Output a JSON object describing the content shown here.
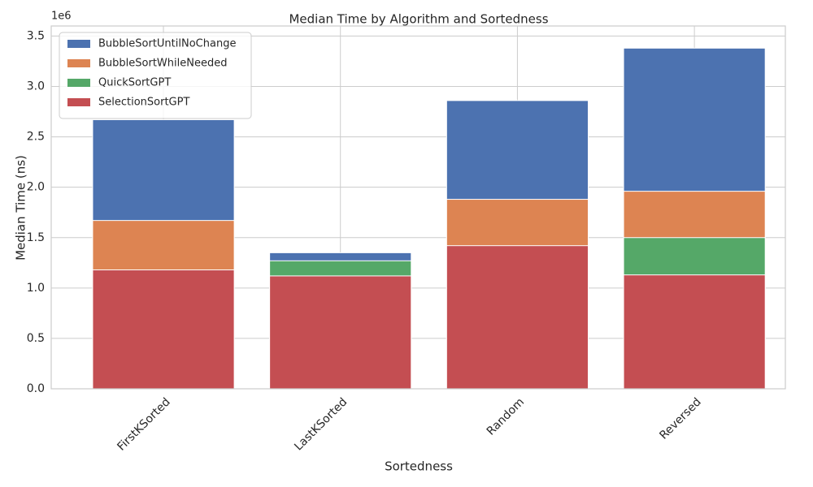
{
  "chart_data": {
    "type": "bar",
    "title": "Median Time by Algorithm and Sortedness",
    "x_label": "Sortedness",
    "y_label": "Median Time (ns)",
    "y_axis_offset": "1e6",
    "categories": [
      "FirstKSorted",
      "LastKSorted",
      "Random",
      "Reversed"
    ],
    "series": [
      {
        "name": "BubbleSortUntilNoChange",
        "color": "#4c72b0",
        "values": [
          2.67,
          1.35,
          2.86,
          3.38
        ]
      },
      {
        "name": "BubbleSortWhileNeeded",
        "color": "#dd8452",
        "values": [
          1.67,
          null,
          1.88,
          1.96
        ]
      },
      {
        "name": "QuickSortGPT",
        "color": "#55a868",
        "values": [
          null,
          1.27,
          null,
          1.5
        ]
      },
      {
        "name": "SelectionSortGPT",
        "color": "#c44e52",
        "values": [
          1.18,
          1.12,
          1.42,
          1.13
        ]
      }
    ],
    "ylim": [
      0,
      3.6
    ],
    "yticks": [
      {
        "value": 0,
        "label": "0.0"
      },
      0.5,
      {
        "value": 1,
        "label": "1.0"
      },
      1.5,
      {
        "value": 2,
        "label": "2.0"
      },
      2.5,
      {
        "value": 3,
        "label": "3.0"
      },
      3.5
    ],
    "grid": true,
    "legend": "upper left"
  }
}
